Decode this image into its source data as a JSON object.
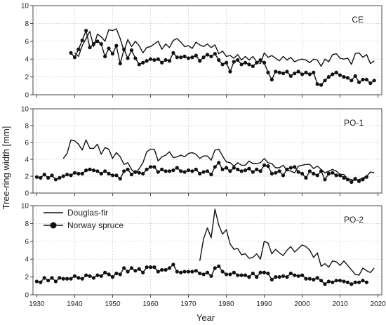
{
  "xlabel": "Year",
  "ylabel": "Tree-ring width [mm]",
  "x_ticks": [
    1930,
    1940,
    1950,
    1960,
    1970,
    1980,
    1990,
    2000,
    2010,
    2020
  ],
  "y_ticks": [
    0,
    2,
    4,
    6,
    8,
    10
  ],
  "legend": {
    "placement": "top-left of bottom panel",
    "entries": [
      {
        "label": "Douglas-fir",
        "style": "line"
      },
      {
        "label": "Norway spruce",
        "style": "line-with-dots"
      }
    ]
  },
  "colors": {
    "series": "#111111",
    "grid": "#cccccc",
    "frame": "#444444"
  },
  "chart_data": [
    {
      "type": "line",
      "panel_label": "CE",
      "xlim": [
        1929,
        2021
      ],
      "ylim": [
        0,
        10
      ],
      "grid": true,
      "series": [
        {
          "name": "Douglas-fir",
          "marker": "none",
          "x": [
            1940,
            1941,
            1942,
            1943,
            1944,
            1945,
            1946,
            1947,
            1948,
            1949,
            1950,
            1951,
            1952,
            1953,
            1954,
            1955,
            1956,
            1957,
            1958,
            1959,
            1960,
            1961,
            1962,
            1963,
            1964,
            1965,
            1966,
            1967,
            1968,
            1969,
            1970,
            1971,
            1972,
            1973,
            1974,
            1975,
            1976,
            1977,
            1978,
            1979,
            1980,
            1981,
            1982,
            1983,
            1984,
            1985,
            1986,
            1987,
            1988,
            1989,
            1990,
            1991,
            1992,
            1993,
            1994,
            1995,
            1996,
            1997,
            1998,
            1999,
            2000,
            2001,
            2002,
            2003,
            2004,
            2005,
            2006,
            2007,
            2008,
            2009,
            2010,
            2011,
            2012,
            2013,
            2014,
            2015,
            2016,
            2017,
            2018,
            2019
          ],
          "y": [
            4.7,
            4.3,
            5.5,
            6.3,
            7.1,
            5.4,
            6.8,
            6.5,
            6.0,
            7.3,
            7.2,
            7.4,
            6.3,
            4.9,
            6.2,
            5.4,
            6.0,
            5.5,
            4.7,
            5.3,
            5.4,
            5.7,
            6.0,
            5.1,
            5.7,
            5.3,
            6.1,
            6.3,
            5.9,
            5.4,
            5.5,
            5.2,
            5.9,
            5.6,
            5.4,
            5.7,
            5.3,
            5.6,
            4.6,
            4.9,
            4.3,
            4.4,
            4.1,
            4.5,
            3.9,
            4.3,
            3.9,
            4.3,
            3.7,
            3.5,
            4.7,
            4.2,
            4.4,
            4.1,
            3.8,
            4.3,
            3.9,
            4.2,
            3.7,
            3.9,
            4.0,
            3.9,
            3.6,
            4.0,
            3.9,
            3.2,
            4.0,
            3.7,
            4.5,
            4.6,
            4.1,
            4.0,
            4.1,
            3.4,
            4.6,
            4.7,
            4.2,
            4.5,
            3.5,
            3.8
          ]
        },
        {
          "name": "Norway spruce",
          "marker": "circle",
          "x": [
            1939,
            1940,
            1941,
            1942,
            1943,
            1944,
            1945,
            1946,
            1947,
            1948,
            1949,
            1950,
            1951,
            1952,
            1953,
            1954,
            1955,
            1956,
            1957,
            1958,
            1959,
            1960,
            1961,
            1962,
            1963,
            1964,
            1965,
            1966,
            1967,
            1968,
            1969,
            1970,
            1971,
            1972,
            1973,
            1974,
            1975,
            1976,
            1977,
            1978,
            1979,
            1980,
            1981,
            1982,
            1983,
            1984,
            1985,
            1986,
            1987,
            1988,
            1989,
            1990,
            1991,
            1992,
            1993,
            1994,
            1995,
            1996,
            1997,
            1998,
            1999,
            2000,
            2001,
            2002,
            2003,
            2004,
            2005,
            2006,
            2007,
            2008,
            2009,
            2010,
            2011,
            2012,
            2013,
            2014,
            2015,
            2016,
            2017,
            2018,
            2019
          ],
          "y": [
            4.7,
            4.2,
            5.1,
            6.1,
            7.2,
            5.3,
            5.7,
            6.0,
            5.7,
            4.3,
            5.2,
            4.6,
            5.5,
            3.5,
            5.1,
            4.1,
            5.0,
            4.1,
            3.4,
            3.6,
            3.8,
            4.0,
            3.9,
            4.0,
            3.6,
            3.9,
            3.8,
            4.7,
            4.2,
            4.2,
            4.3,
            4.1,
            4.2,
            4.4,
            3.8,
            4.2,
            4.5,
            4.3,
            4.6,
            3.9,
            3.4,
            3.6,
            2.6,
            3.7,
            3.9,
            3.4,
            3.6,
            3.4,
            3.2,
            3.6,
            3.9,
            3.6,
            2.5,
            1.7,
            2.6,
            2.5,
            2.4,
            2.6,
            2.1,
            2.4,
            2.6,
            2.3,
            2.5,
            2.3,
            2.5,
            1.2,
            1.1,
            1.6,
            2.0,
            2.3,
            2.5,
            2.2,
            2.0,
            1.9,
            1.6,
            2.1,
            1.4,
            1.7,
            1.7,
            1.3,
            1.6
          ]
        }
      ]
    },
    {
      "type": "line",
      "panel_label": "PO-1",
      "xlim": [
        1929,
        2021
      ],
      "ylim": [
        0,
        10
      ],
      "grid": true,
      "series": [
        {
          "name": "Douglas-fir",
          "marker": "none",
          "x": [
            1937,
            1938,
            1939,
            1940,
            1941,
            1942,
            1943,
            1944,
            1945,
            1946,
            1947,
            1948,
            1949,
            1950,
            1951,
            1952,
            1953,
            1954,
            1955,
            1956,
            1957,
            1958,
            1959,
            1960,
            1961,
            1962,
            1963,
            1964,
            1965,
            1966,
            1967,
            1968,
            1969,
            1970,
            1971,
            1972,
            1973,
            1974,
            1975,
            1976,
            1977,
            1978,
            1979,
            1980,
            1981,
            1982,
            1983,
            1984,
            1985,
            1986,
            1987,
            1988,
            1989,
            1990,
            1991,
            1992,
            1993,
            1994,
            1995,
            1996,
            1997,
            1998,
            1999,
            2000,
            2001,
            2002,
            2003,
            2004,
            2005,
            2006,
            2007,
            2008,
            2009,
            2010,
            2011,
            2012,
            2013,
            2014,
            2015,
            2016,
            2017,
            2018,
            2019
          ],
          "y": [
            4.1,
            4.7,
            6.3,
            6.2,
            5.8,
            5.1,
            6.3,
            5.3,
            5.3,
            5.8,
            4.6,
            5.4,
            5.2,
            4.1,
            4.8,
            4.3,
            3.4,
            3.6,
            2.8,
            2.3,
            2.9,
            3.6,
            4.9,
            5.2,
            5.2,
            3.8,
            4.3,
            4.5,
            4.9,
            4.2,
            4.3,
            4.5,
            4.3,
            4.7,
            4.8,
            4.6,
            4.1,
            4.4,
            4.4,
            3.9,
            5.1,
            5.2,
            4.4,
            3.7,
            3.6,
            3.2,
            3.6,
            3.3,
            3.3,
            3.8,
            3.5,
            3.5,
            3.6,
            4.1,
            3.6,
            3.5,
            3.0,
            3.0,
            3.3,
            2.7,
            2.6,
            2.4,
            3.2,
            3.3,
            3.4,
            3.4,
            2.9,
            3.2,
            2.8,
            2.4,
            2.6,
            2.8,
            2.6,
            2.2,
            2.2,
            1.7,
            1.6,
            1.5,
            1.6,
            1.8,
            2.0,
            2.5,
            2.4
          ]
        },
        {
          "name": "Norway spruce",
          "marker": "circle",
          "x": [
            1930,
            1931,
            1932,
            1933,
            1934,
            1935,
            1936,
            1937,
            1938,
            1939,
            1940,
            1941,
            1942,
            1943,
            1944,
            1945,
            1946,
            1947,
            1948,
            1949,
            1950,
            1951,
            1952,
            1953,
            1954,
            1955,
            1956,
            1957,
            1958,
            1959,
            1960,
            1961,
            1962,
            1963,
            1964,
            1965,
            1966,
            1967,
            1968,
            1969,
            1970,
            1971,
            1972,
            1973,
            1974,
            1975,
            1976,
            1977,
            1978,
            1979,
            1980,
            1981,
            1982,
            1983,
            1984,
            1985,
            1986,
            1987,
            1988,
            1989,
            1990,
            1991,
            1992,
            1993,
            1994,
            1995,
            1996,
            1997,
            1998,
            1999,
            2000,
            2001,
            2002,
            2003,
            2004,
            2005,
            2006,
            2007,
            2008,
            2009,
            2010,
            2011,
            2012,
            2013,
            2014,
            2015,
            2016,
            2017
          ],
          "y": [
            1.9,
            1.8,
            2.2,
            1.8,
            2.1,
            1.6,
            1.8,
            2.0,
            2.2,
            2.1,
            2.4,
            2.3,
            2.3,
            2.7,
            2.8,
            2.7,
            2.6,
            2.3,
            2.6,
            2.3,
            2.1,
            2.1,
            1.7,
            2.6,
            2.8,
            2.2,
            2.5,
            2.4,
            2.3,
            2.8,
            3.1,
            3.1,
            2.5,
            2.8,
            2.6,
            2.6,
            2.7,
            3.0,
            2.6,
            2.5,
            2.7,
            2.6,
            2.8,
            2.3,
            2.5,
            2.6,
            2.2,
            3.1,
            3.6,
            2.8,
            3.0,
            2.6,
            3.0,
            2.8,
            2.6,
            2.7,
            2.9,
            2.5,
            2.8,
            2.6,
            3.3,
            3.2,
            2.3,
            2.4,
            2.6,
            2.1,
            2.8,
            3.0,
            3.1,
            2.5,
            2.3,
            1.8,
            2.6,
            2.3,
            2.1,
            2.6,
            1.6,
            2.3,
            2.4,
            2.1,
            2.1,
            1.8,
            1.6,
            1.3,
            1.7,
            1.4,
            1.6,
            1.9
          ]
        }
      ]
    },
    {
      "type": "line",
      "panel_label": "PO-2",
      "xlim": [
        1929,
        2021
      ],
      "ylim": [
        0,
        10
      ],
      "grid": true,
      "series": [
        {
          "name": "Douglas-fir",
          "marker": "none",
          "x": [
            1973,
            1974,
            1975,
            1976,
            1977,
            1978,
            1979,
            1980,
            1981,
            1982,
            1983,
            1984,
            1985,
            1986,
            1987,
            1988,
            1989,
            1990,
            1991,
            1992,
            1993,
            1994,
            1995,
            1996,
            1997,
            1998,
            1999,
            2000,
            2001,
            2002,
            2003,
            2004,
            2005,
            2006,
            2007,
            2008,
            2009,
            2010,
            2011,
            2012,
            2013,
            2014,
            2015,
            2016,
            2017,
            2018,
            2019
          ],
          "y": [
            3.8,
            6.3,
            7.5,
            6.4,
            9.6,
            7.8,
            6.8,
            7.3,
            5.7,
            5.1,
            5.2,
            4.5,
            4.6,
            4.1,
            4.2,
            4.6,
            4.0,
            6.0,
            5.8,
            4.6,
            5.1,
            4.7,
            4.4,
            5.0,
            5.4,
            4.8,
            5.2,
            5.6,
            5.4,
            5.0,
            4.2,
            4.7,
            3.2,
            3.5,
            3.1,
            3.8,
            3.7,
            3.3,
            3.8,
            3.3,
            2.8,
            2.3,
            2.2,
            3.0,
            2.7,
            2.5,
            3.0
          ]
        },
        {
          "name": "Norway spruce",
          "marker": "circle",
          "x": [
            1930,
            1931,
            1932,
            1933,
            1934,
            1935,
            1936,
            1937,
            1938,
            1939,
            1940,
            1941,
            1942,
            1943,
            1944,
            1945,
            1946,
            1947,
            1948,
            1949,
            1950,
            1951,
            1952,
            1953,
            1954,
            1955,
            1956,
            1957,
            1958,
            1959,
            1960,
            1961,
            1962,
            1963,
            1964,
            1965,
            1966,
            1967,
            1968,
            1969,
            1970,
            1971,
            1972,
            1973,
            1974,
            1975,
            1976,
            1977,
            1978,
            1979,
            1980,
            1981,
            1982,
            1983,
            1984,
            1985,
            1986,
            1987,
            1988,
            1989,
            1990,
            1991,
            1992,
            1993,
            1994,
            1995,
            1996,
            1997,
            1998,
            1999,
            2000,
            2001,
            2002,
            2003,
            2004,
            2005,
            2006,
            2007,
            2008,
            2009,
            2010,
            2011,
            2012,
            2013,
            2014,
            2015,
            2016,
            2017
          ],
          "y": [
            1.5,
            1.4,
            1.9,
            1.6,
            1.9,
            1.5,
            1.9,
            1.8,
            1.8,
            1.8,
            2.1,
            1.9,
            1.8,
            2.2,
            2.1,
            1.9,
            2.2,
            2.1,
            2.5,
            2.3,
            2.0,
            2.4,
            2.3,
            3.0,
            2.6,
            3.0,
            2.7,
            2.9,
            2.5,
            3.1,
            3.1,
            3.1,
            2.6,
            2.8,
            2.8,
            3.0,
            3.4,
            2.6,
            2.5,
            2.6,
            2.6,
            2.6,
            2.7,
            2.4,
            2.3,
            2.5,
            2.1,
            3.0,
            3.2,
            2.6,
            2.3,
            2.3,
            2.5,
            2.2,
            2.2,
            2.2,
            2.0,
            2.4,
            2.0,
            2.5,
            2.5,
            2.4,
            1.7,
            2.0,
            2.0,
            2.1,
            2.0,
            2.4,
            2.2,
            2.1,
            2.2,
            1.8,
            1.8,
            1.7,
            1.9,
            1.6,
            1.2,
            1.5,
            1.4,
            1.6,
            1.6,
            1.5,
            1.4,
            1.2,
            1.4,
            1.4,
            1.6,
            1.4
          ]
        }
      ]
    }
  ]
}
